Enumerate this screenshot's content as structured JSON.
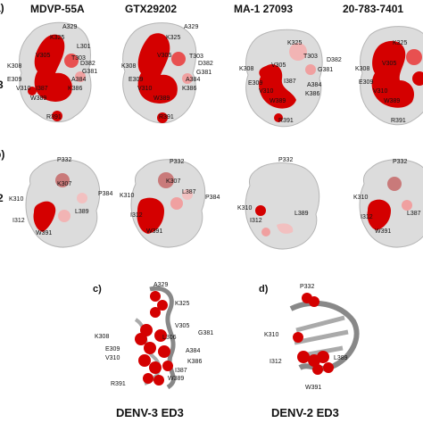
{
  "columns": [
    "MDVP-55A",
    "GTX29202",
    "MA-1 27093",
    "20-783-7401"
  ],
  "rows": {
    "a": {
      "letter": "a)",
      "side": "3"
    },
    "b": {
      "letter": "b)",
      "side": "2"
    }
  },
  "panel_c": {
    "letter": "c)",
    "title": "DENV-3 ED3",
    "labels": [
      "A329",
      "K325",
      "G381",
      "K308",
      "V305",
      "L306",
      "A384",
      "E309",
      "V310",
      "I387",
      "K386",
      "W389",
      "R391"
    ]
  },
  "panel_d": {
    "letter": "d)",
    "title": "DENV-2 ED3",
    "labels": [
      "P332",
      "K310",
      "I312",
      "L389",
      "W391"
    ]
  },
  "row_a_labels": {
    "p1": [
      "A329",
      "K325",
      "L301",
      "K308",
      "V305",
      "T303",
      "D382",
      "G381",
      "E309",
      "A384",
      "V310",
      "I387",
      "K386",
      "W389",
      "R391"
    ],
    "p2": [
      "A329",
      "K325",
      "V305",
      "T303",
      "K308",
      "D382",
      "G381",
      "E309",
      "A384",
      "V310",
      "K386",
      "W389",
      "R391"
    ],
    "p3": [
      "K325",
      "V305",
      "T303",
      "D382",
      "K308",
      "G381",
      "E309",
      "V310",
      "I387",
      "A384",
      "W389",
      "K386",
      "R391"
    ],
    "p4": [
      "K325",
      "V305",
      "K308",
      "E309",
      "V310",
      "W389",
      "R391"
    ]
  },
  "row_b_labels": {
    "p1": [
      "P332",
      "K307",
      "P384",
      "K310",
      "L389",
      "I312",
      "W391"
    ],
    "p2": [
      "P332",
      "K307",
      "L387",
      "P384",
      "K310",
      "I312",
      "W391"
    ],
    "p3": [
      "P332",
      "K310",
      "L389",
      "I312"
    ],
    "p4": [
      "P332",
      "K310",
      "L387",
      "I312",
      "W391"
    ]
  }
}
